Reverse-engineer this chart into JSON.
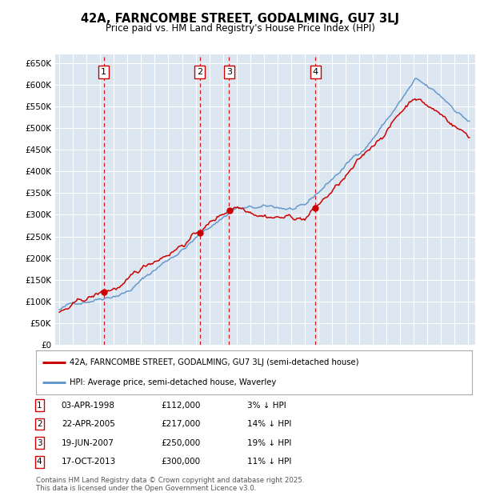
{
  "title": "42A, FARNCOMBE STREET, GODALMING, GU7 3LJ",
  "subtitle": "Price paid vs. HM Land Registry's House Price Index (HPI)",
  "ylim": [
    0,
    670000
  ],
  "yticks": [
    0,
    50000,
    100000,
    150000,
    200000,
    250000,
    300000,
    350000,
    400000,
    450000,
    500000,
    550000,
    600000,
    650000
  ],
  "ytick_labels": [
    "£0",
    "£50K",
    "£100K",
    "£150K",
    "£200K",
    "£250K",
    "£300K",
    "£350K",
    "£400K",
    "£450K",
    "£500K",
    "£550K",
    "£600K",
    "£650K"
  ],
  "xlim_start": 1994.7,
  "xlim_end": 2025.5,
  "plot_bg_color": "#dce6f1",
  "grid_color": "#ffffff",
  "red_line_color": "#cc0000",
  "blue_line_color": "#6699cc",
  "marker_line_color": "#cc0000",
  "transactions": [
    {
      "num": 1,
      "date": "03-APR-1998",
      "year": 1998.25,
      "price": 112000,
      "pct": "3%"
    },
    {
      "num": 2,
      "date": "22-APR-2005",
      "year": 2005.3,
      "price": 217000,
      "pct": "14%"
    },
    {
      "num": 3,
      "date": "19-JUN-2007",
      "year": 2007.46,
      "price": 250000,
      "pct": "19%"
    },
    {
      "num": 4,
      "date": "17-OCT-2013",
      "year": 2013.79,
      "price": 300000,
      "pct": "11%"
    }
  ],
  "legend_property": "42A, FARNCOMBE STREET, GODALMING, GU7 3LJ (semi-detached house)",
  "legend_hpi": "HPI: Average price, semi-detached house, Waverley",
  "footnote": "Contains HM Land Registry data © Crown copyright and database right 2025.\nThis data is licensed under the Open Government Licence v3.0."
}
